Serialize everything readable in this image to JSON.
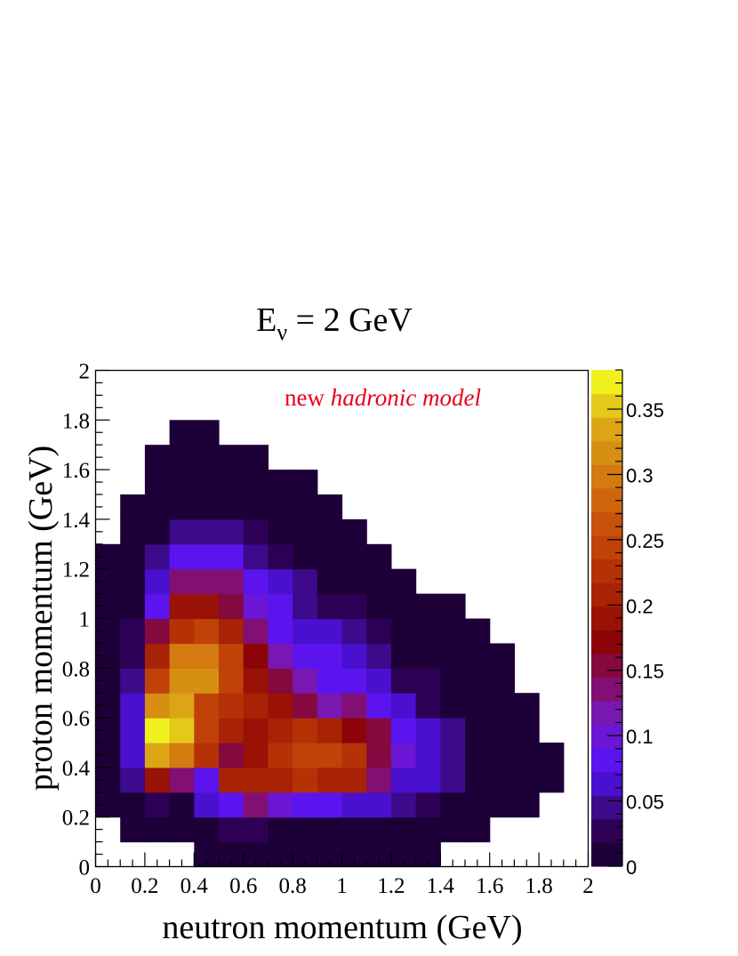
{
  "chart_data": {
    "type": "heatmap",
    "title_main": "E",
    "title_sub": "ν",
    "title_rest": " = 2 GeV",
    "xlabel": "neutron momentum (GeV)",
    "ylabel": "proton momentum (GeV)",
    "annotation_plain": "new ",
    "annotation_italic": "hadronic model",
    "annotation_color": "#e8001c",
    "xlim": [
      0,
      2
    ],
    "ylim": [
      0,
      2
    ],
    "zlim": [
      0,
      0.38
    ],
    "bin_width": 0.1,
    "x_ticks": [
      "0",
      "0.2",
      "0.4",
      "0.6",
      "0.8",
      "1",
      "1.2",
      "1.4",
      "1.6",
      "1.8",
      "2"
    ],
    "y_ticks": [
      "0",
      "0.2",
      "0.4",
      "0.6",
      "0.8",
      "1",
      "1.2",
      "1.4",
      "1.6",
      "1.8",
      "2"
    ],
    "z_ticks": [
      "0",
      "0.05",
      "0.1",
      "0.15",
      "0.2",
      "0.25",
      "0.3",
      "0.35"
    ],
    "rows_y_low_to_high": [
      [
        null,
        null,
        null,
        null,
        0.01,
        0.01,
        0.01,
        0.01,
        0.01,
        0.01,
        0.01,
        0.01,
        0.01,
        0.01,
        null,
        null,
        null,
        null,
        null,
        null
      ],
      [
        null,
        0.01,
        0.01,
        0.01,
        0.01,
        0.03,
        0.03,
        0.01,
        0.01,
        0.01,
        0.01,
        0.01,
        0.01,
        0.01,
        0.01,
        0.01,
        null,
        null,
        null,
        null
      ],
      [
        0.01,
        0.01,
        0.03,
        0.01,
        0.06,
        0.09,
        0.13,
        0.1,
        0.08,
        0.08,
        0.07,
        0.06,
        0.05,
        0.03,
        0.01,
        0.01,
        0.01,
        0.01,
        null,
        null
      ],
      [
        0.01,
        0.05,
        0.19,
        0.13,
        0.08,
        0.2,
        0.21,
        0.21,
        0.22,
        0.21,
        0.2,
        0.13,
        0.07,
        0.06,
        0.04,
        0.01,
        0.01,
        0.01,
        0.01,
        null
      ],
      [
        0.01,
        0.07,
        0.34,
        0.3,
        0.22,
        0.15,
        0.19,
        0.22,
        0.25,
        0.24,
        0.22,
        0.15,
        0.1,
        0.07,
        0.04,
        0.01,
        0.01,
        0.01,
        0.01,
        null
      ],
      [
        0.01,
        0.07,
        0.37,
        0.35,
        0.25,
        0.21,
        0.19,
        0.21,
        0.23,
        0.21,
        0.18,
        0.15,
        0.08,
        0.07,
        0.04,
        0.01,
        0.01,
        0.01,
        null,
        null
      ],
      [
        0.01,
        0.06,
        0.31,
        0.34,
        0.25,
        0.22,
        0.2,
        0.19,
        0.15,
        0.12,
        0.14,
        0.08,
        0.07,
        0.03,
        0.01,
        0.01,
        0.01,
        0.01,
        null,
        null
      ],
      [
        0.01,
        0.05,
        0.24,
        0.31,
        0.31,
        0.24,
        0.19,
        0.15,
        0.12,
        0.09,
        0.08,
        0.06,
        0.03,
        0.03,
        0.01,
        0.01,
        0.01,
        null,
        null,
        null
      ],
      [
        0.01,
        0.02,
        0.2,
        0.3,
        0.3,
        0.24,
        0.17,
        0.11,
        0.09,
        0.08,
        0.07,
        0.05,
        0.01,
        0.01,
        0.01,
        0.01,
        0.01,
        null,
        null,
        null
      ],
      [
        0.01,
        0.02,
        0.15,
        0.23,
        0.25,
        0.2,
        0.13,
        0.09,
        0.07,
        0.06,
        0.05,
        0.02,
        0.01,
        0.01,
        0.01,
        0.01,
        null,
        null,
        null,
        null
      ],
      [
        0.01,
        0.01,
        0.09,
        0.19,
        0.19,
        0.15,
        0.1,
        0.08,
        0.05,
        0.03,
        0.03,
        0.01,
        0.01,
        0.01,
        0.01,
        null,
        null,
        null,
        null,
        null
      ],
      [
        0.01,
        0.01,
        0.07,
        0.13,
        0.14,
        0.13,
        0.09,
        0.07,
        0.05,
        0.01,
        0.01,
        0.01,
        0.01,
        null,
        null,
        null,
        null,
        null,
        null,
        null
      ],
      [
        0.01,
        0.01,
        0.04,
        0.09,
        0.08,
        0.09,
        0.05,
        0.03,
        0.01,
        0.01,
        0.01,
        0.01,
        null,
        null,
        null,
        null,
        null,
        null,
        null,
        null
      ],
      [
        null,
        0.01,
        0.01,
        0.05,
        0.05,
        0.05,
        0.03,
        0.01,
        0.01,
        0.01,
        0.01,
        null,
        null,
        null,
        null,
        null,
        null,
        null,
        null,
        null
      ],
      [
        null,
        0.01,
        0.01,
        0.01,
        0.01,
        0.01,
        0.01,
        0.01,
        0.01,
        0.01,
        null,
        null,
        null,
        null,
        null,
        null,
        null,
        null,
        null,
        null
      ],
      [
        null,
        null,
        0.01,
        0.01,
        0.01,
        0.01,
        0.01,
        0.01,
        0.01,
        null,
        null,
        null,
        null,
        null,
        null,
        null,
        null,
        null,
        null,
        null
      ],
      [
        null,
        null,
        0.01,
        0.01,
        0.01,
        0.01,
        0.01,
        null,
        null,
        null,
        null,
        null,
        null,
        null,
        null,
        null,
        null,
        null,
        null,
        null
      ],
      [
        null,
        null,
        null,
        0.01,
        0.01,
        null,
        null,
        null,
        null,
        null,
        null,
        null,
        null,
        null,
        null,
        null,
        null,
        null,
        null,
        null
      ],
      [
        null,
        null,
        null,
        null,
        null,
        null,
        null,
        null,
        null,
        null,
        null,
        null,
        null,
        null,
        null,
        null,
        null,
        null,
        null,
        null
      ],
      [
        null,
        null,
        null,
        null,
        null,
        null,
        null,
        null,
        null,
        null,
        null,
        null,
        null,
        null,
        null,
        null,
        null,
        null,
        null,
        null
      ]
    ],
    "palette": [
      "#1d0038",
      "#2e0055",
      "#3d0a8c",
      "#4a10cf",
      "#5c14ee",
      "#6a16d4",
      "#7818b0",
      "#820f73",
      "#84093f",
      "#8c0408",
      "#9a1205",
      "#a82205",
      "#b53206",
      "#c04208",
      "#c9520a",
      "#d0650d",
      "#d37a10",
      "#d68f13",
      "#dba516",
      "#e3c918",
      "#f0f01e"
    ]
  }
}
